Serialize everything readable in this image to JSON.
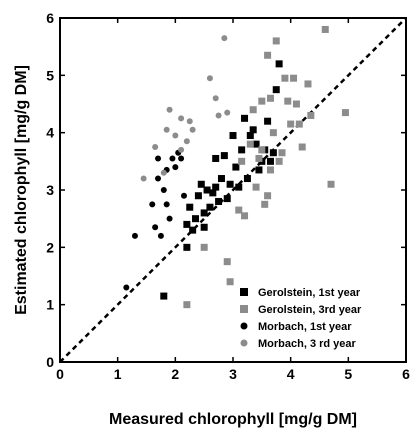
{
  "chart_data": {
    "type": "scatter",
    "title": "",
    "xlabel": "Measured chlorophyll [mg/g DM]",
    "ylabel": "Estimated chlorophyll [mg/g DM]",
    "xlim": [
      0,
      6
    ],
    "ylim": [
      0,
      6
    ],
    "xticks": [
      "0",
      "1",
      "2",
      "3",
      "4",
      "5",
      "6"
    ],
    "yticks": [
      "0",
      "1",
      "2",
      "3",
      "4",
      "5",
      "6"
    ],
    "grid": false,
    "legend_position": "bottom-right",
    "reference_line": {
      "style": "dashed",
      "color": "#000000",
      "from": [
        0,
        0
      ],
      "to": [
        6,
        6
      ]
    },
    "series": [
      {
        "name": "Gerolstein, 1st year",
        "marker": "square",
        "color": "#000000",
        "points": [
          [
            1.8,
            1.15
          ],
          [
            2.2,
            2.0
          ],
          [
            2.2,
            2.4
          ],
          [
            2.25,
            2.7
          ],
          [
            2.3,
            2.3
          ],
          [
            2.35,
            2.5
          ],
          [
            2.4,
            2.9
          ],
          [
            2.45,
            3.1
          ],
          [
            2.5,
            2.6
          ],
          [
            2.5,
            2.35
          ],
          [
            2.55,
            3.0
          ],
          [
            2.6,
            2.7
          ],
          [
            2.65,
            2.95
          ],
          [
            2.7,
            3.05
          ],
          [
            2.7,
            3.55
          ],
          [
            2.75,
            2.8
          ],
          [
            2.8,
            3.2
          ],
          [
            2.85,
            3.6
          ],
          [
            2.9,
            2.85
          ],
          [
            2.95,
            3.1
          ],
          [
            3.0,
            3.95
          ],
          [
            3.05,
            3.4
          ],
          [
            3.1,
            3.05
          ],
          [
            3.15,
            3.7
          ],
          [
            3.2,
            4.25
          ],
          [
            3.25,
            3.2
          ],
          [
            3.3,
            3.95
          ],
          [
            3.35,
            4.05
          ],
          [
            3.4,
            3.8
          ],
          [
            3.45,
            3.35
          ],
          [
            3.5,
            3.5
          ],
          [
            3.55,
            3.7
          ],
          [
            3.6,
            4.2
          ],
          [
            3.65,
            3.5
          ],
          [
            3.7,
            3.65
          ],
          [
            3.75,
            4.75
          ],
          [
            3.8,
            5.2
          ]
        ]
      },
      {
        "name": "Gerolstein, 3rd year",
        "marker": "square",
        "color": "#8c8c8c",
        "points": [
          [
            2.2,
            1.0
          ],
          [
            2.5,
            2.0
          ],
          [
            2.9,
            1.75
          ],
          [
            2.95,
            1.4
          ],
          [
            3.1,
            2.65
          ],
          [
            3.15,
            3.5
          ],
          [
            3.2,
            2.55
          ],
          [
            3.3,
            3.8
          ],
          [
            3.35,
            4.4
          ],
          [
            3.4,
            3.05
          ],
          [
            3.45,
            3.55
          ],
          [
            3.5,
            3.7
          ],
          [
            3.55,
            2.75
          ],
          [
            3.6,
            2.9
          ],
          [
            3.65,
            3.35
          ],
          [
            3.7,
            4.0
          ],
          [
            3.75,
            5.6
          ],
          [
            3.8,
            3.5
          ],
          [
            3.85,
            3.65
          ],
          [
            3.9,
            4.95
          ],
          [
            3.95,
            4.55
          ],
          [
            4.0,
            4.15
          ],
          [
            4.05,
            4.95
          ],
          [
            4.1,
            4.5
          ],
          [
            4.15,
            4.15
          ],
          [
            4.2,
            3.75
          ],
          [
            4.3,
            4.85
          ],
          [
            4.35,
            4.3
          ],
          [
            4.6,
            5.8
          ],
          [
            4.7,
            3.1
          ],
          [
            4.95,
            4.35
          ],
          [
            3.5,
            4.55
          ],
          [
            3.6,
            5.35
          ],
          [
            3.65,
            4.6
          ]
        ]
      },
      {
        "name": "Morbach, 1st year",
        "marker": "circle",
        "color": "#000000",
        "points": [
          [
            1.15,
            1.3
          ],
          [
            1.3,
            2.2
          ],
          [
            1.6,
            2.75
          ],
          [
            1.65,
            2.35
          ],
          [
            1.7,
            3.2
          ],
          [
            1.7,
            3.55
          ],
          [
            1.75,
            2.2
          ],
          [
            1.8,
            3.0
          ],
          [
            1.85,
            2.75
          ],
          [
            1.85,
            3.35
          ],
          [
            1.9,
            2.5
          ],
          [
            1.95,
            3.55
          ],
          [
            2.0,
            3.4
          ],
          [
            2.05,
            3.65
          ],
          [
            2.1,
            3.55
          ],
          [
            2.15,
            2.9
          ]
        ]
      },
      {
        "name": "Morbach, 3 rd year",
        "marker": "circle",
        "color": "#8c8c8c",
        "points": [
          [
            1.45,
            3.2
          ],
          [
            1.65,
            3.75
          ],
          [
            1.8,
            3.3
          ],
          [
            1.85,
            4.05
          ],
          [
            1.9,
            4.4
          ],
          [
            2.0,
            3.95
          ],
          [
            2.1,
            3.7
          ],
          [
            2.1,
            4.25
          ],
          [
            2.2,
            3.85
          ],
          [
            2.25,
            4.2
          ],
          [
            2.3,
            4.05
          ],
          [
            2.6,
            4.95
          ],
          [
            2.7,
            4.6
          ],
          [
            2.75,
            4.3
          ],
          [
            2.85,
            5.65
          ],
          [
            2.9,
            4.35
          ]
        ]
      }
    ]
  }
}
